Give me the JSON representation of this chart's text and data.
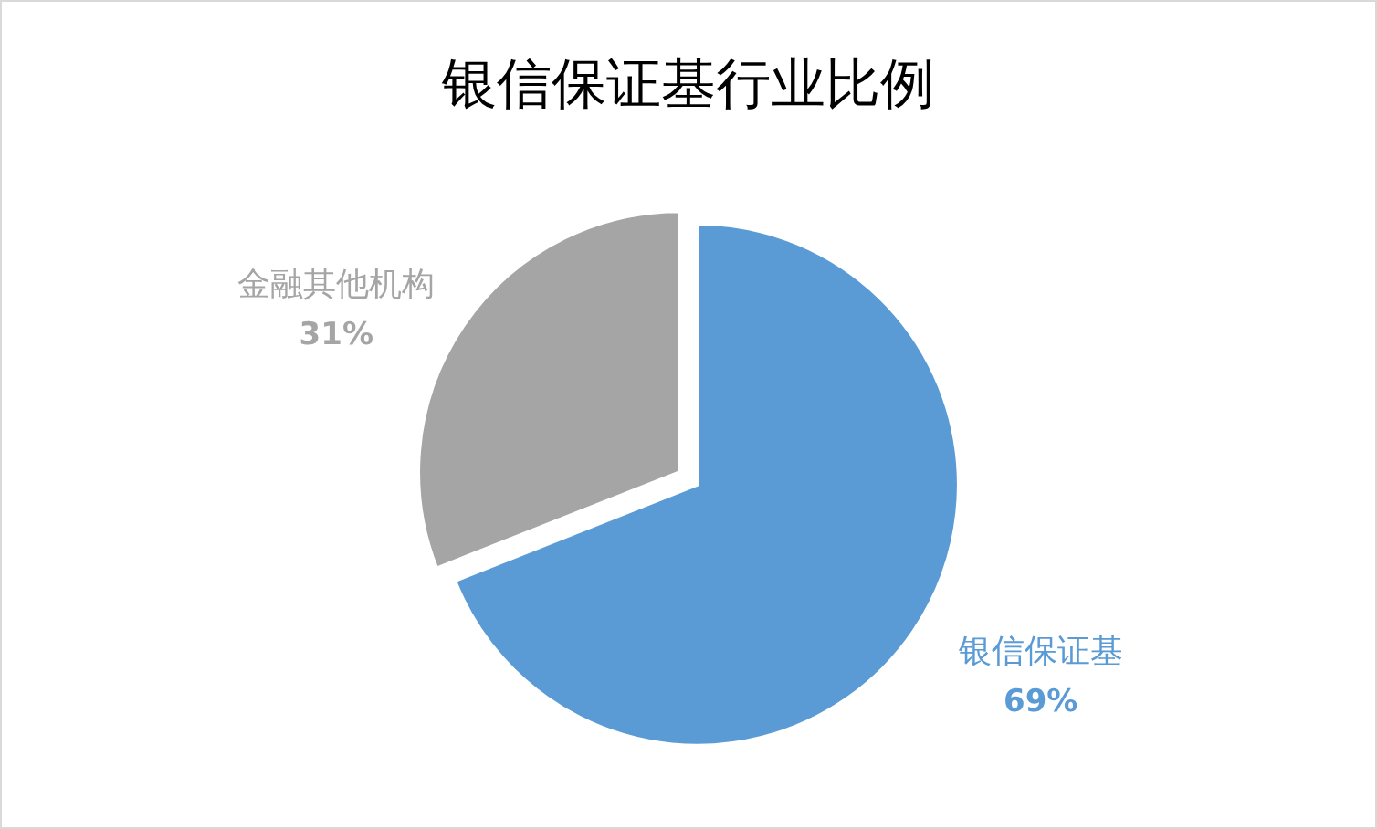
{
  "chart_data": {
    "type": "pie",
    "title": "银信保证基行业比例",
    "categories": [
      "银信保证基",
      "金融其他机构"
    ],
    "values": [
      69,
      31
    ],
    "colors": [
      "#5b9bd5",
      "#a5a5a5"
    ],
    "value_labels": [
      "69%",
      "31%"
    ]
  }
}
